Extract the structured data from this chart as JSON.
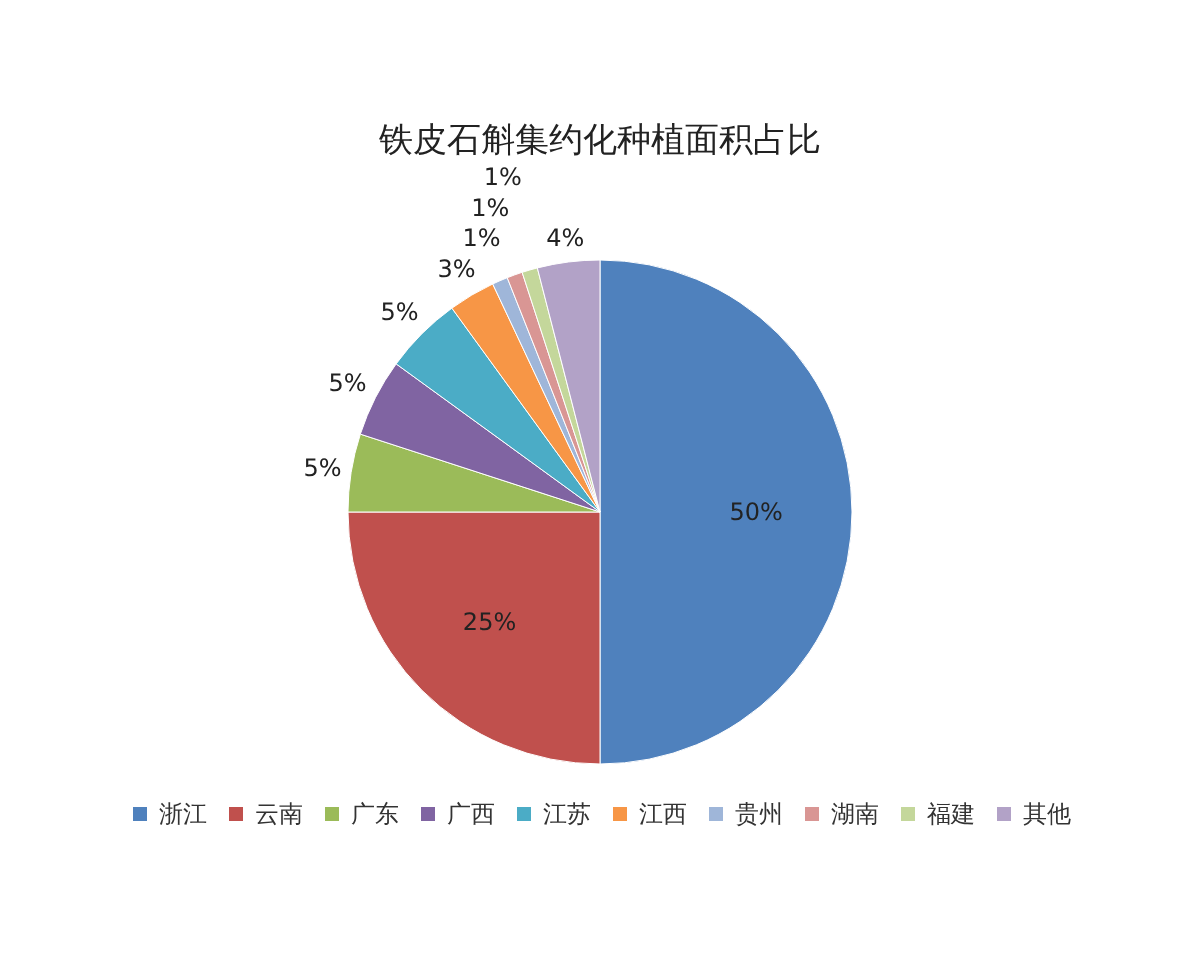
{
  "chart_data": {
    "type": "pie",
    "title": "铁皮石斛集约化种植面积占比",
    "categories": [
      "浙江",
      "云南",
      "广东",
      "广西",
      "江苏",
      "江西",
      "贵州",
      "湖南",
      "福建",
      "其他"
    ],
    "values": [
      50,
      25,
      5,
      5,
      5,
      3,
      1,
      1,
      1,
      4
    ],
    "value_labels": [
      "50%",
      "25%",
      "5%",
      "5%",
      "5%",
      "3%",
      "1%",
      "1%",
      "1%",
      "4%"
    ],
    "colors": [
      "#4f81bd",
      "#c0504d",
      "#9bbb59",
      "#8064a2",
      "#4bacc6",
      "#f79646",
      "#9fb6d9",
      "#d99694",
      "#c4d79b",
      "#b2a2c7"
    ],
    "legend": "bottom"
  }
}
